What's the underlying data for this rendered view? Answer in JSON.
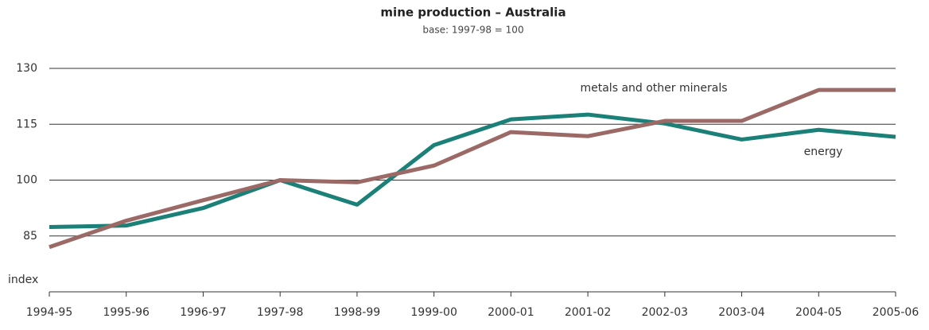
{
  "chart_data": {
    "type": "line",
    "title": "mine production – Australia",
    "subtitle": "base: 1997-98 = 100",
    "y_label": "index",
    "categories": [
      "1994-95",
      "1995-96",
      "1996-97",
      "1997-98",
      "1998-99",
      "1999-00",
      "2000-01",
      "2001-02",
      "2002-03",
      "2003-04",
      "2004-05",
      "2005-06"
    ],
    "series": [
      {
        "name": "energy",
        "color": "#1a8078",
        "values": [
          87.4,
          87.8,
          92.5,
          100,
          93.4,
          109.4,
          116.3,
          117.6,
          115.2,
          110.9,
          113.5,
          111.6
        ]
      },
      {
        "name": "metals and other minerals",
        "color": "#9c6a66",
        "values": [
          82,
          89.1,
          94.6,
          100,
          99.4,
          103.9,
          112.9,
          111.8,
          115.9,
          115.9,
          124.2,
          124.2
        ]
      }
    ],
    "ylim": [
      70,
      130
    ],
    "yticks": [
      85,
      100,
      115,
      130
    ],
    "grid": true
  }
}
